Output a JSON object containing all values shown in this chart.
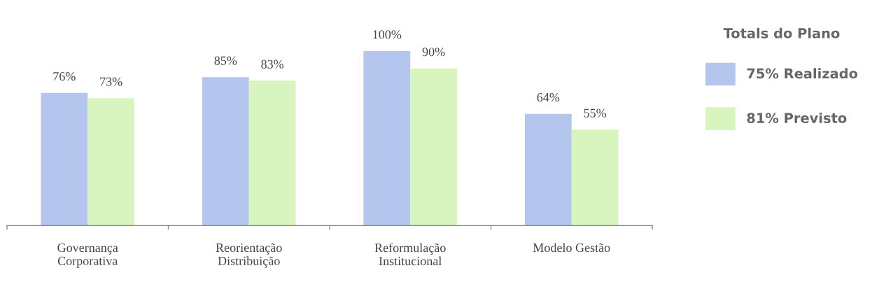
{
  "chart_data": {
    "type": "bar",
    "categories": [
      "Governança\nCorporativa",
      "Reorientação\nDistribuição",
      "Reformulação\nInstitucional",
      "Modelo Gestão"
    ],
    "series": [
      {
        "name": "75% Realizado",
        "color": "#b4c6ee",
        "values": [
          76,
          85,
          100,
          64
        ],
        "value_labels": [
          "76%",
          "85%",
          "100%",
          "64%"
        ]
      },
      {
        "name": "81% Previsto",
        "color": "#d9f5bf",
        "values": [
          73,
          83,
          90,
          55
        ],
        "value_labels": [
          "73%",
          "83%",
          "90%",
          "55%"
        ]
      }
    ],
    "legend_title": "Totals do Plano",
    "legend": "right",
    "grid": false
  }
}
